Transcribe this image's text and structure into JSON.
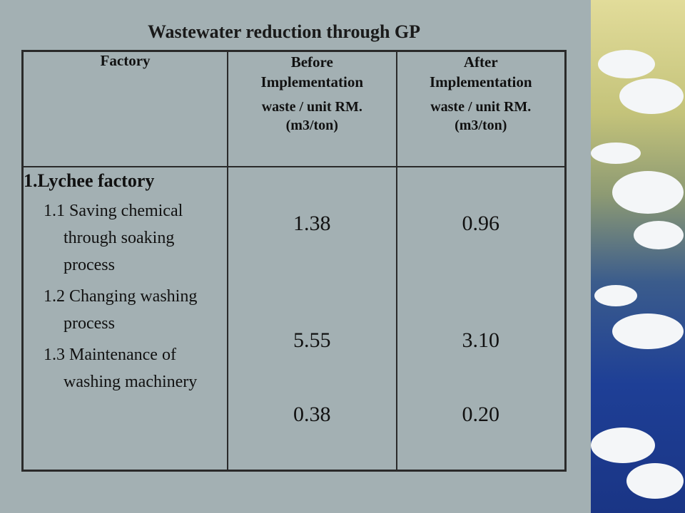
{
  "title": "Wastewater reduction through GP",
  "headers": {
    "factory": "Factory",
    "before": {
      "line1": "Before",
      "line2": "Implementation",
      "line3": "waste / unit RM.",
      "unit": "(m3/ton)"
    },
    "after": {
      "line1": "After",
      "line2": "Implementation",
      "line3": "waste / unit RM.",
      "unit": "(m3/ton)"
    }
  },
  "factory_name": "1.Lychee factory",
  "rows": [
    {
      "label": "1.1 Saving chemical through soaking process",
      "before": "1.38",
      "after": "0.96"
    },
    {
      "label": "1.2 Changing washing process",
      "before": "5.55",
      "after": "3.10"
    },
    {
      "label": "1.3  Maintenance of washing machinery",
      "before": "0.38",
      "after": "0.20"
    }
  ],
  "decoration": {
    "icon": "wave-illustration",
    "colors": [
      "#e2dc9a",
      "#1e3f96",
      "#f4f6f8"
    ]
  }
}
